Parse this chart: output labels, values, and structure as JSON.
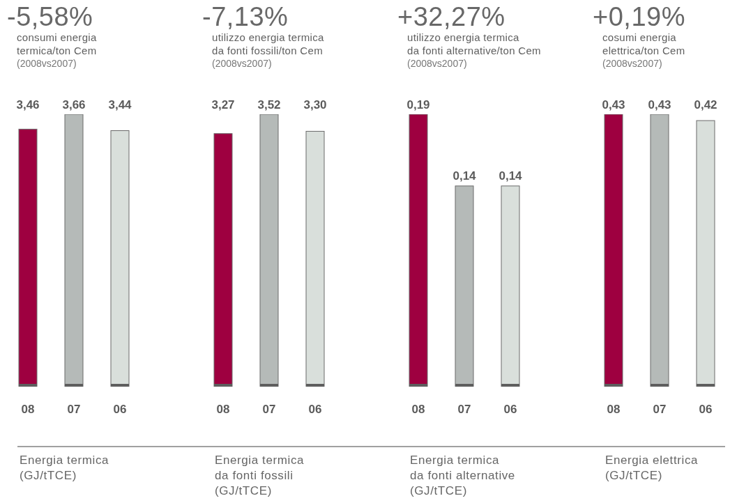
{
  "chart_data": [
    {
      "type": "bar",
      "title": "-5,58%",
      "subtitle": "consumi energia\ntermica/ton Cem",
      "annotations": [
        "(2008vs2007)"
      ],
      "xlabel": "Energia termica\n(GJ/tTCE)",
      "categories": [
        "08",
        "07",
        "06"
      ],
      "values": [
        3.46,
        3.66,
        3.44
      ],
      "colors": [
        "#9e0040",
        "#b5bab8",
        "#d9dfdb"
      ],
      "value_labels": [
        "3,46",
        "3,66",
        "3,44"
      ]
    },
    {
      "type": "bar",
      "title": "-7,13%",
      "subtitle": "utilizzo energia termica\nda fonti fossili/ton Cem",
      "annotations": [
        "(2008vs2007)"
      ],
      "xlabel": "Energia termica\nda fonti fossili\n(GJ/tTCE)",
      "categories": [
        "08",
        "07",
        "06"
      ],
      "values": [
        3.27,
        3.52,
        3.3
      ],
      "colors": [
        "#9e0040",
        "#b5bab8",
        "#d9dfdb"
      ],
      "value_labels": [
        "3,27",
        "3,52",
        "3,30"
      ]
    },
    {
      "type": "bar",
      "title": "+32,27%",
      "subtitle": "utilizzo energia termica\nda fonti alternative/ton Cem",
      "annotations": [
        "(2008vs2007)"
      ],
      "xlabel": "Energia termica\nda fonti alternative\n(GJ/tTCE)",
      "categories": [
        "08",
        "07",
        "06"
      ],
      "values": [
        0.19,
        0.14,
        0.14
      ],
      "colors": [
        "#9e0040",
        "#b5bab8",
        "#d9dfdb"
      ],
      "value_labels": [
        "0,19",
        "0,14",
        "0,14"
      ]
    },
    {
      "type": "bar",
      "title": "+0,19%",
      "subtitle": "cosumi energia\nelettrica/ton Cem",
      "annotations": [
        "(2008vs2007)"
      ],
      "xlabel": "Energia elettrica\n(GJ/tTCE)",
      "categories": [
        "08",
        "07",
        "06"
      ],
      "values": [
        0.43,
        0.43,
        0.42
      ],
      "colors": [
        "#9e0040",
        "#b5bab8",
        "#d9dfdb"
      ],
      "value_labels": [
        "0,43",
        "0,43",
        "0,42"
      ]
    }
  ]
}
